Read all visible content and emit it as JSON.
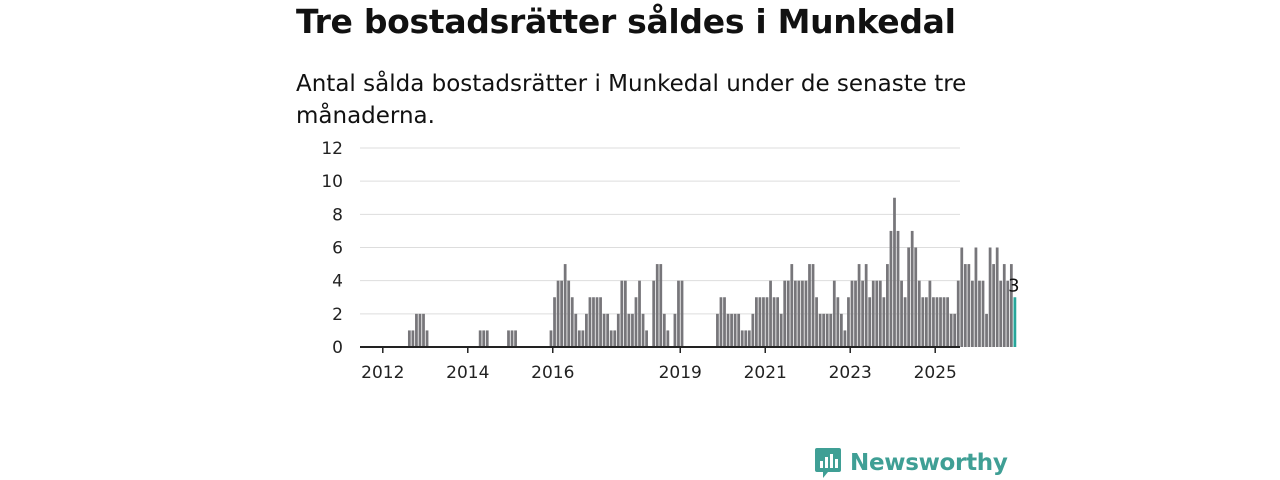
{
  "title": "Tre bostadsrätter såldes i Munkedal",
  "subtitle": "Antal sålda bostadsrätter i Munkedal under de senaste tre månaderna.",
  "brand": {
    "name": "Newsworthy",
    "color": "#3f9f95"
  },
  "colors": {
    "bar": "#77767a",
    "highlight": "#26a69a",
    "grid": "#dddddd",
    "axis": "#222222"
  },
  "chart_data": {
    "type": "bar",
    "x_unit": "month",
    "start": "2011-09",
    "xlim": [
      "2011-06",
      "2025-08"
    ],
    "ylim": [
      0,
      12
    ],
    "y_ticks": [
      "0",
      "2",
      "4",
      "6",
      "8",
      "10",
      "12"
    ],
    "x_ticks": [
      "2012",
      "2014",
      "2016",
      "2019",
      "2021",
      "2023",
      "2025"
    ],
    "grid": true,
    "highlight_last": true,
    "last_value_label": "3",
    "values": [
      0,
      0,
      0,
      0,
      0,
      0,
      0,
      0,
      0,
      0,
      0,
      1,
      1,
      2,
      2,
      2,
      1,
      0,
      0,
      0,
      0,
      0,
      0,
      0,
      0,
      0,
      0,
      0,
      0,
      0,
      0,
      1,
      1,
      1,
      0,
      0,
      0,
      0,
      0,
      1,
      1,
      1,
      0,
      0,
      0,
      0,
      0,
      0,
      0,
      0,
      0,
      1,
      3,
      4,
      4,
      5,
      4,
      3,
      2,
      1,
      1,
      2,
      3,
      3,
      3,
      3,
      2,
      2,
      1,
      1,
      2,
      4,
      4,
      2,
      2,
      3,
      4,
      2,
      1,
      0,
      4,
      5,
      5,
      2,
      1,
      0,
      2,
      4,
      4,
      0,
      0,
      0,
      0,
      0,
      0,
      0,
      0,
      0,
      2,
      3,
      3,
      2,
      2,
      2,
      2,
      1,
      1,
      1,
      2,
      3,
      3,
      3,
      3,
      4,
      3,
      3,
      2,
      4,
      4,
      5,
      4,
      4,
      4,
      4,
      5,
      5,
      3,
      2,
      2,
      2,
      2,
      4,
      3,
      2,
      1,
      3,
      4,
      4,
      5,
      4,
      5,
      3,
      4,
      4,
      4,
      3,
      5,
      7,
      9,
      7,
      4,
      3,
      6,
      7,
      6,
      4,
      3,
      3,
      4,
      3,
      3,
      3,
      3,
      3,
      2,
      2,
      4,
      6,
      5,
      5,
      4,
      6,
      4,
      4,
      2,
      6,
      5,
      6,
      4,
      5,
      4,
      5,
      3
    ]
  }
}
